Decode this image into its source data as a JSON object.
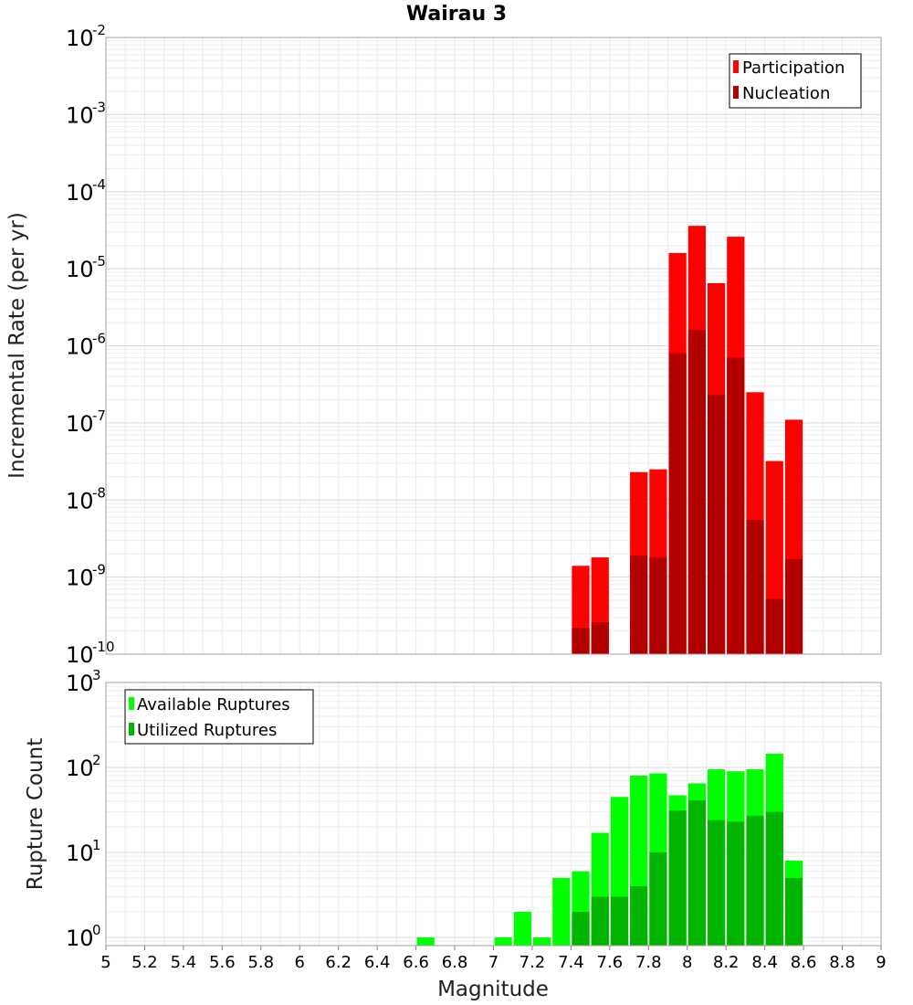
{
  "chart_data": [
    {
      "type": "bar",
      "title": "Wairau 3",
      "xlabel": "",
      "ylabel": "Incremental Rate (per yr)",
      "yscale": "log",
      "ylim": [
        1e-10,
        0.01
      ],
      "xlim": [
        5,
        9
      ],
      "grid": true,
      "legend_position": "top-right",
      "x": [
        7.45,
        7.55,
        7.65,
        7.75,
        7.85,
        7.95,
        8.05,
        8.15,
        8.25,
        8.35,
        8.45,
        8.55
      ],
      "series": [
        {
          "name": "Participation",
          "color": "#ff0000",
          "values": [
            1.4e-09,
            1.8e-09,
            null,
            2.3e-08,
            2.5e-08,
            1.6e-05,
            3.6e-05,
            6.5e-06,
            2.6e-05,
            2.5e-07,
            3.2e-08,
            1.1e-07
          ]
        },
        {
          "name": "Nucleation",
          "color": "#b20000",
          "values": [
            2.2e-10,
            2.6e-10,
            null,
            1.9e-09,
            1.8e-09,
            8e-07,
            1.6e-06,
            2.3e-07,
            7e-07,
            5.5e-09,
            5.2e-10,
            1.7e-09
          ]
        }
      ]
    },
    {
      "type": "bar",
      "title": "",
      "xlabel": "Magnitude",
      "ylabel": "Rupture Count",
      "yscale": "log",
      "ylim": [
        0.8,
        1000
      ],
      "xlim": [
        5,
        9
      ],
      "grid": true,
      "legend_position": "top-left",
      "x": [
        6.65,
        7.05,
        7.15,
        7.25,
        7.35,
        7.45,
        7.55,
        7.65,
        7.75,
        7.85,
        7.95,
        8.05,
        8.15,
        8.25,
        8.35,
        8.45,
        8.55
      ],
      "series": [
        {
          "name": "Available Ruptures",
          "color": "#00ff00",
          "values": [
            1,
            1,
            2,
            1,
            5,
            6,
            17,
            45,
            80,
            85,
            47,
            65,
            95,
            90,
            95,
            145,
            8
          ]
        },
        {
          "name": "Utilized Ruptures",
          "color": "#00b400",
          "values": [
            null,
            null,
            null,
            null,
            null,
            2,
            3,
            3,
            4,
            10,
            31,
            41,
            24,
            23,
            27,
            30,
            5
          ]
        }
      ]
    }
  ],
  "x_ticks": [
    "5",
    "5.2",
    "5.4",
    "5.6",
    "5.8",
    "6",
    "6.2",
    "6.4",
    "6.6",
    "6.8",
    "7",
    "7.2",
    "7.4",
    "7.6",
    "7.8",
    "8",
    "8.2",
    "8.4",
    "8.6",
    "8.8",
    "9"
  ],
  "top_y_ticks": [
    {
      "exp": -10,
      "base": "10",
      "label": "-10"
    },
    {
      "exp": -9,
      "base": "10",
      "label": "-9"
    },
    {
      "exp": -8,
      "base": "10",
      "label": "-8"
    },
    {
      "exp": -7,
      "base": "10",
      "label": "-7"
    },
    {
      "exp": -6,
      "base": "10",
      "label": "-6"
    },
    {
      "exp": -5,
      "base": "10",
      "label": "-5"
    },
    {
      "exp": -4,
      "base": "10",
      "label": "-4"
    },
    {
      "exp": -3,
      "base": "10",
      "label": "-3"
    },
    {
      "exp": -2,
      "base": "10",
      "label": "-2"
    }
  ],
  "bottom_y_ticks": [
    {
      "exp": 0,
      "base": "10",
      "label": "0"
    },
    {
      "exp": 1,
      "base": "10",
      "label": "1"
    },
    {
      "exp": 2,
      "base": "10",
      "label": "2"
    },
    {
      "exp": 3,
      "base": "10",
      "label": "3"
    }
  ]
}
